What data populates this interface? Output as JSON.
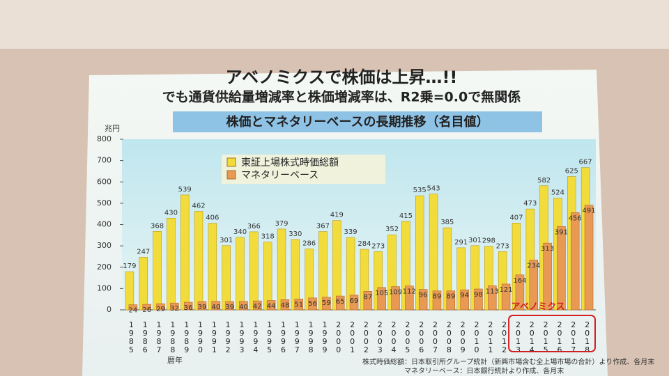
{
  "header": {
    "title": "アベノミクスで株価は上昇…!!",
    "subtitle": "でも通貨供給量増減率と株価増減率は、R2乗=0.0で無関係"
  },
  "chart_data": {
    "type": "bar",
    "title": "株価とマネタリーベースの長期推移（名目値）",
    "y_label": "兆円",
    "x_label": "暦年",
    "annotation": "アベノミクス",
    "categories": [
      "1985",
      "1986",
      "1987",
      "1988",
      "1989",
      "1990",
      "1991",
      "1992",
      "1993",
      "1994",
      "1995",
      "1996",
      "1997",
      "1998",
      "1999",
      "2000",
      "2001",
      "2002",
      "2003",
      "2004",
      "2005",
      "2006",
      "2007",
      "2008",
      "2009",
      "2010",
      "2011",
      "2012",
      "2013",
      "2014",
      "2015",
      "2016",
      "2017",
      "2018"
    ],
    "series": [
      {
        "name": "東証上場株式時価総額",
        "color": "#f2dc3c",
        "values": [
          179,
          247,
          368,
          430,
          539,
          462,
          406,
          301,
          340,
          366,
          318,
          379,
          330,
          286,
          367,
          419,
          339,
          284,
          273,
          352,
          415,
          535,
          543,
          385,
          291,
          301,
          298,
          273,
          407,
          473,
          582,
          524,
          625,
          667
        ]
      },
      {
        "name": "マネタリーベース",
        "color": "#e89a55",
        "values": [
          24,
          26,
          29,
          32,
          36,
          39,
          40,
          39,
          40,
          42,
          44,
          48,
          51,
          56,
          59,
          65,
          69,
          87,
          105,
          109,
          112,
          96,
          89,
          89,
          94,
          98,
          113,
          121,
          164,
          234,
          313,
          391,
          456,
          491
        ]
      }
    ],
    "ylim": [
      0,
      800
    ],
    "yticks": [
      0,
      100,
      200,
      300,
      400,
      500,
      600,
      700,
      800
    ],
    "grid": false,
    "legend": "top-left",
    "sources": [
      "株式時価総額：日本取引所グループ統計（新興市場含む全上場市場の合計）より作成、各月末",
      "マネタリーベース：日本銀行統計より作成、各月末"
    ]
  }
}
